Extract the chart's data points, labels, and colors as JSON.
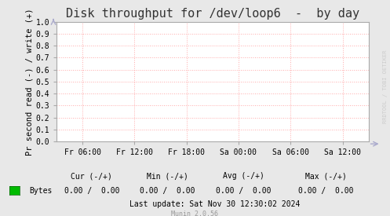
{
  "title": "Disk throughput for /dev/loop6  -  by day",
  "ylabel": "Pr second read (-) / write (+)",
  "background_color": "#e8e8e8",
  "plot_background_color": "#ffffff",
  "grid_color": "#ffaaaa",
  "border_color": "#aaaaaa",
  "ylim": [
    0.0,
    1.0
  ],
  "yticks": [
    0.0,
    0.1,
    0.2,
    0.3,
    0.4,
    0.5,
    0.6,
    0.7,
    0.8,
    0.9,
    1.0
  ],
  "xtick_labels": [
    "Fr 06:00",
    "Fr 12:00",
    "Fr 18:00",
    "Sa 00:00",
    "Sa 06:00",
    "Sa 12:00"
  ],
  "legend_label": "Bytes",
  "legend_color": "#00bb00",
  "cur_label": "Cur (-/+)",
  "cur_val": "0.00 /  0.00",
  "min_label": "Min (-/+)",
  "min_val": "0.00 /  0.00",
  "avg_label": "Avg (-/+)",
  "avg_val": "0.00 /  0.00",
  "max_label": "Max (-/+)",
  "max_val": "0.00 /  0.00",
  "last_update": "Last update: Sat Nov 30 12:30:02 2024",
  "munin_version": "Munin 2.0.56",
  "watermark": "RRDTOOL / TOBI OETIKER",
  "title_fontsize": 11,
  "ylabel_fontsize": 7.5,
  "tick_fontsize": 7,
  "footer_fontsize": 7,
  "munin_fontsize": 6
}
